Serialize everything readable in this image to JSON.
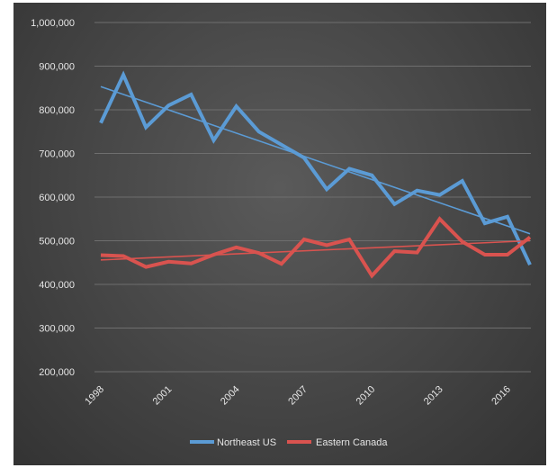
{
  "chart_data": {
    "type": "line",
    "x": [
      1998,
      1999,
      2000,
      2001,
      2002,
      2003,
      2004,
      2005,
      2006,
      2007,
      2008,
      2009,
      2010,
      2011,
      2012,
      2013,
      2014,
      2015,
      2016,
      2017
    ],
    "x_tick_labels": [
      "1998",
      "2001",
      "2004",
      "2007",
      "2010",
      "2013",
      "2016"
    ],
    "y_tick_labels": [
      "200,000",
      "300,000",
      "400,000",
      "500,000",
      "600,000",
      "700,000",
      "800,000",
      "900,000",
      "1,000,000"
    ],
    "ylim": [
      200000,
      1000000
    ],
    "grid": true,
    "legend_position": "bottom",
    "series": [
      {
        "name": "Northeast US",
        "color": "#5b9bd5",
        "values": [
          770000,
          880000,
          760000,
          810000,
          835000,
          730000,
          808000,
          750000,
          720000,
          690000,
          618000,
          665000,
          650000,
          584000,
          615000,
          605000,
          637000,
          540000,
          555000,
          445000
        ],
        "trend": [
          853000,
          516000
        ]
      },
      {
        "name": "Eastern Canada",
        "color": "#d9534f",
        "values": [
          467000,
          465000,
          440000,
          452000,
          448000,
          468000,
          485000,
          472000,
          447000,
          503000,
          490000,
          503000,
          420000,
          476000,
          473000,
          550000,
          498000,
          468000,
          468000,
          508000
        ],
        "trend": [
          456000,
          500000
        ]
      }
    ]
  }
}
